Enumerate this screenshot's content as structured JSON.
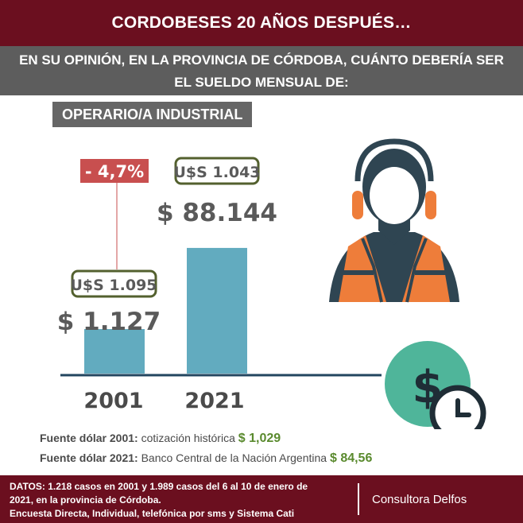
{
  "header": {
    "title": "CORDOBESES 20 AÑOS DESPUÉS…",
    "question_line1": "EN SU OPINIÓN, EN LA PROVINCIA DE CÓRDOBA, CUÁNTO DEBERÍA SER",
    "question_line2": "EL SUELDO MENSUAL DE:",
    "occupation": "OPERARIO/A INDUSTRIAL"
  },
  "chart_data": {
    "type": "bar",
    "categories": [
      "2001",
      "2021"
    ],
    "values": [
      1127,
      88144
    ],
    "value_labels": [
      "$ 1.127",
      "$ 88.144"
    ],
    "usd_labels": [
      "U$S 1.095",
      "U$S 1.043"
    ],
    "change_label": "- 4,7%",
    "title": "",
    "xlabel": "",
    "ylabel": "",
    "ylim": [
      0,
      100000
    ]
  },
  "sources": {
    "line1_label": "Fuente dólar 2001:",
    "line1_text": "cotización histórica",
    "line1_value": "$ 1,029",
    "line2_label": "Fuente dólar 2021:",
    "line2_text": "Banco Central de la Nación Argentina",
    "line2_value": "$ 84,56"
  },
  "footer": {
    "line1": "DATOS: 1.218 casos en 2001 y 1.989 casos del 6 al 10 de enero de",
    "line2": "2021, en la provincia de Córdoba.",
    "line3": "Encuesta Directa, Individual, telefónica por sms y Sistema Cati",
    "brand": "Consultora Delfos"
  },
  "colors": {
    "bar": "#62abbf",
    "axis": "#22455f",
    "usd_box_border": "#53602e",
    "change_box": "#c84f4f",
    "title_bg": "#6b0f1f",
    "question_bg": "#5d5d5d",
    "vest": "#ee7d3a",
    "worker": "#2f4552",
    "coin": "#4fb59a"
  },
  "icons": [
    "worker-icon",
    "dollar-clock-icon"
  ]
}
